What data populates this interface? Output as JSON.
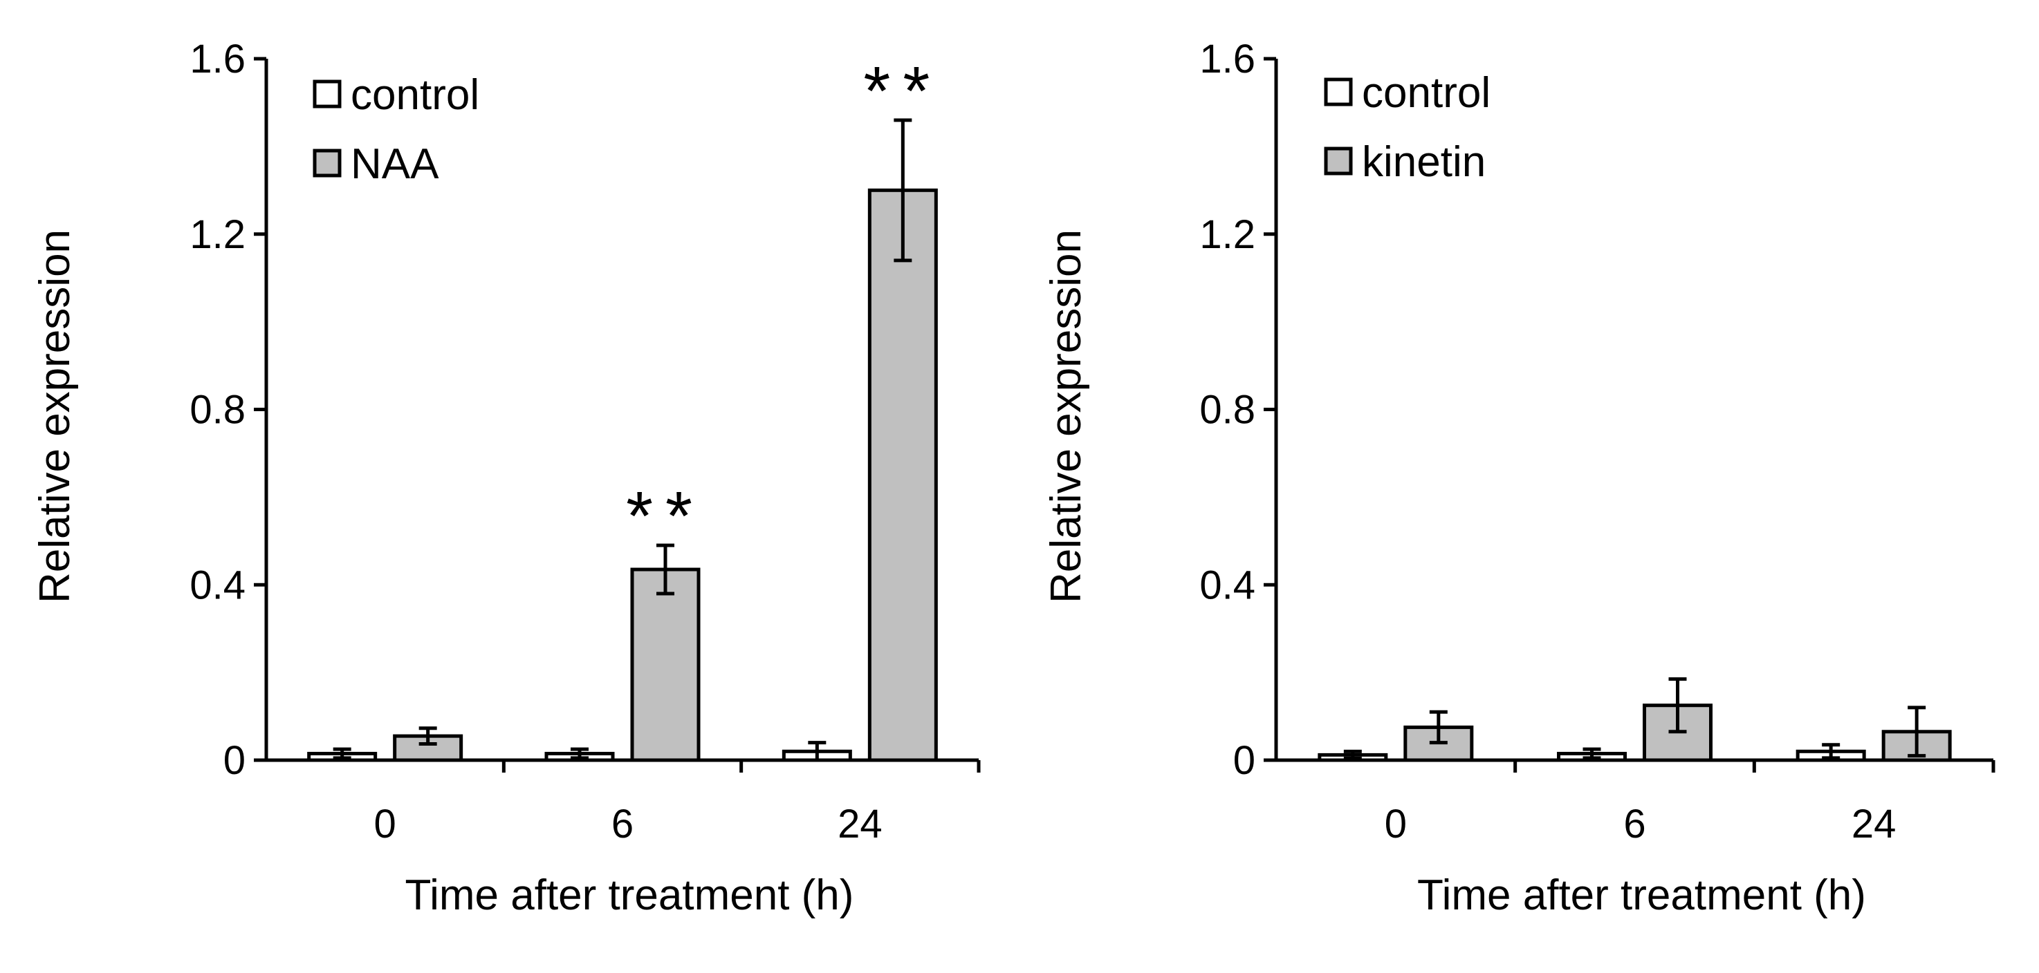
{
  "chart_data": [
    {
      "type": "bar",
      "panel": "left",
      "categories": [
        "0",
        "6",
        "24"
      ],
      "series": [
        {
          "name": "control",
          "color": "#ffffff",
          "values": [
            0.015,
            0.015,
            0.02
          ],
          "errors": [
            0.01,
            0.01,
            0.02
          ]
        },
        {
          "name": "NAA",
          "color": "#c0c0c0",
          "values": [
            0.055,
            0.435,
            1.3
          ],
          "errors": [
            0.018,
            0.055,
            0.16
          ]
        }
      ],
      "significance": [
        {
          "category": "6",
          "series": "NAA",
          "label": "**"
        },
        {
          "category": "24",
          "series": "NAA",
          "label": "**"
        }
      ],
      "xlabel": "Time after treatment (h)",
      "ylabel": "Relative expression",
      "ylim": [
        0,
        1.6
      ],
      "yticks": [
        0,
        0.4,
        0.8,
        1.2,
        1.6
      ],
      "ytick_labels": [
        "0",
        "0.4",
        "0.8",
        "1.2",
        "1.6"
      ],
      "legend": "top-left",
      "grid": false
    },
    {
      "type": "bar",
      "panel": "right",
      "categories": [
        "0",
        "6",
        "24"
      ],
      "series": [
        {
          "name": "control",
          "color": "#ffffff",
          "values": [
            0.012,
            0.015,
            0.02
          ],
          "errors": [
            0.008,
            0.01,
            0.015
          ]
        },
        {
          "name": "kinetin",
          "color": "#c0c0c0",
          "values": [
            0.075,
            0.125,
            0.065
          ],
          "errors": [
            0.035,
            0.06,
            0.055
          ]
        }
      ],
      "significance": [],
      "xlabel": "Time after treatment (h)",
      "ylabel": "Relative expression",
      "ylim": [
        0,
        1.6
      ],
      "yticks": [
        0,
        0.4,
        0.8,
        1.2,
        1.6
      ],
      "ytick_labels": [
        "0",
        "0.4",
        "0.8",
        "1.2",
        "1.6"
      ],
      "legend": "top-left",
      "grid": false
    }
  ]
}
